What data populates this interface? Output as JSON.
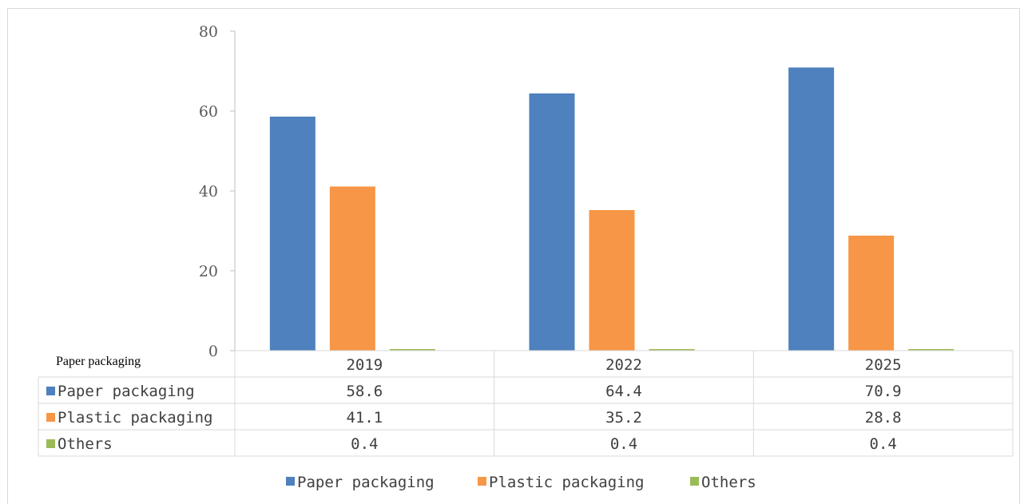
{
  "chart_data": {
    "type": "bar",
    "categories": [
      "2019",
      "2022",
      "2025"
    ],
    "series": [
      {
        "name": "Paper packaging",
        "values": [
          58.6,
          64.4,
          70.9
        ],
        "color": "#4e81bd"
      },
      {
        "name": "Plastic packaging",
        "values": [
          41.1,
          35.2,
          28.8
        ],
        "color": "#f79646"
      },
      {
        "name": "Others",
        "values": [
          0.4,
          0.4,
          0.4
        ],
        "color": "#9bbb59"
      }
    ],
    "y_ticks": [
      "0",
      "20",
      "40",
      "60",
      "80"
    ],
    "ylim": [
      0,
      80
    ],
    "grid": false,
    "legend_position": "bottom",
    "data_table": {
      "corner_label": "Paper packaging",
      "rows": [
        {
          "name": "Paper packaging",
          "cells": [
            "58.6",
            "64.4",
            "70.9"
          ]
        },
        {
          "name": "Plastic packaging",
          "cells": [
            "41.1",
            "35.2",
            "28.8"
          ]
        },
        {
          "name": "Others",
          "cells": [
            "0.4",
            "0.4",
            "0.4"
          ]
        }
      ]
    }
  }
}
